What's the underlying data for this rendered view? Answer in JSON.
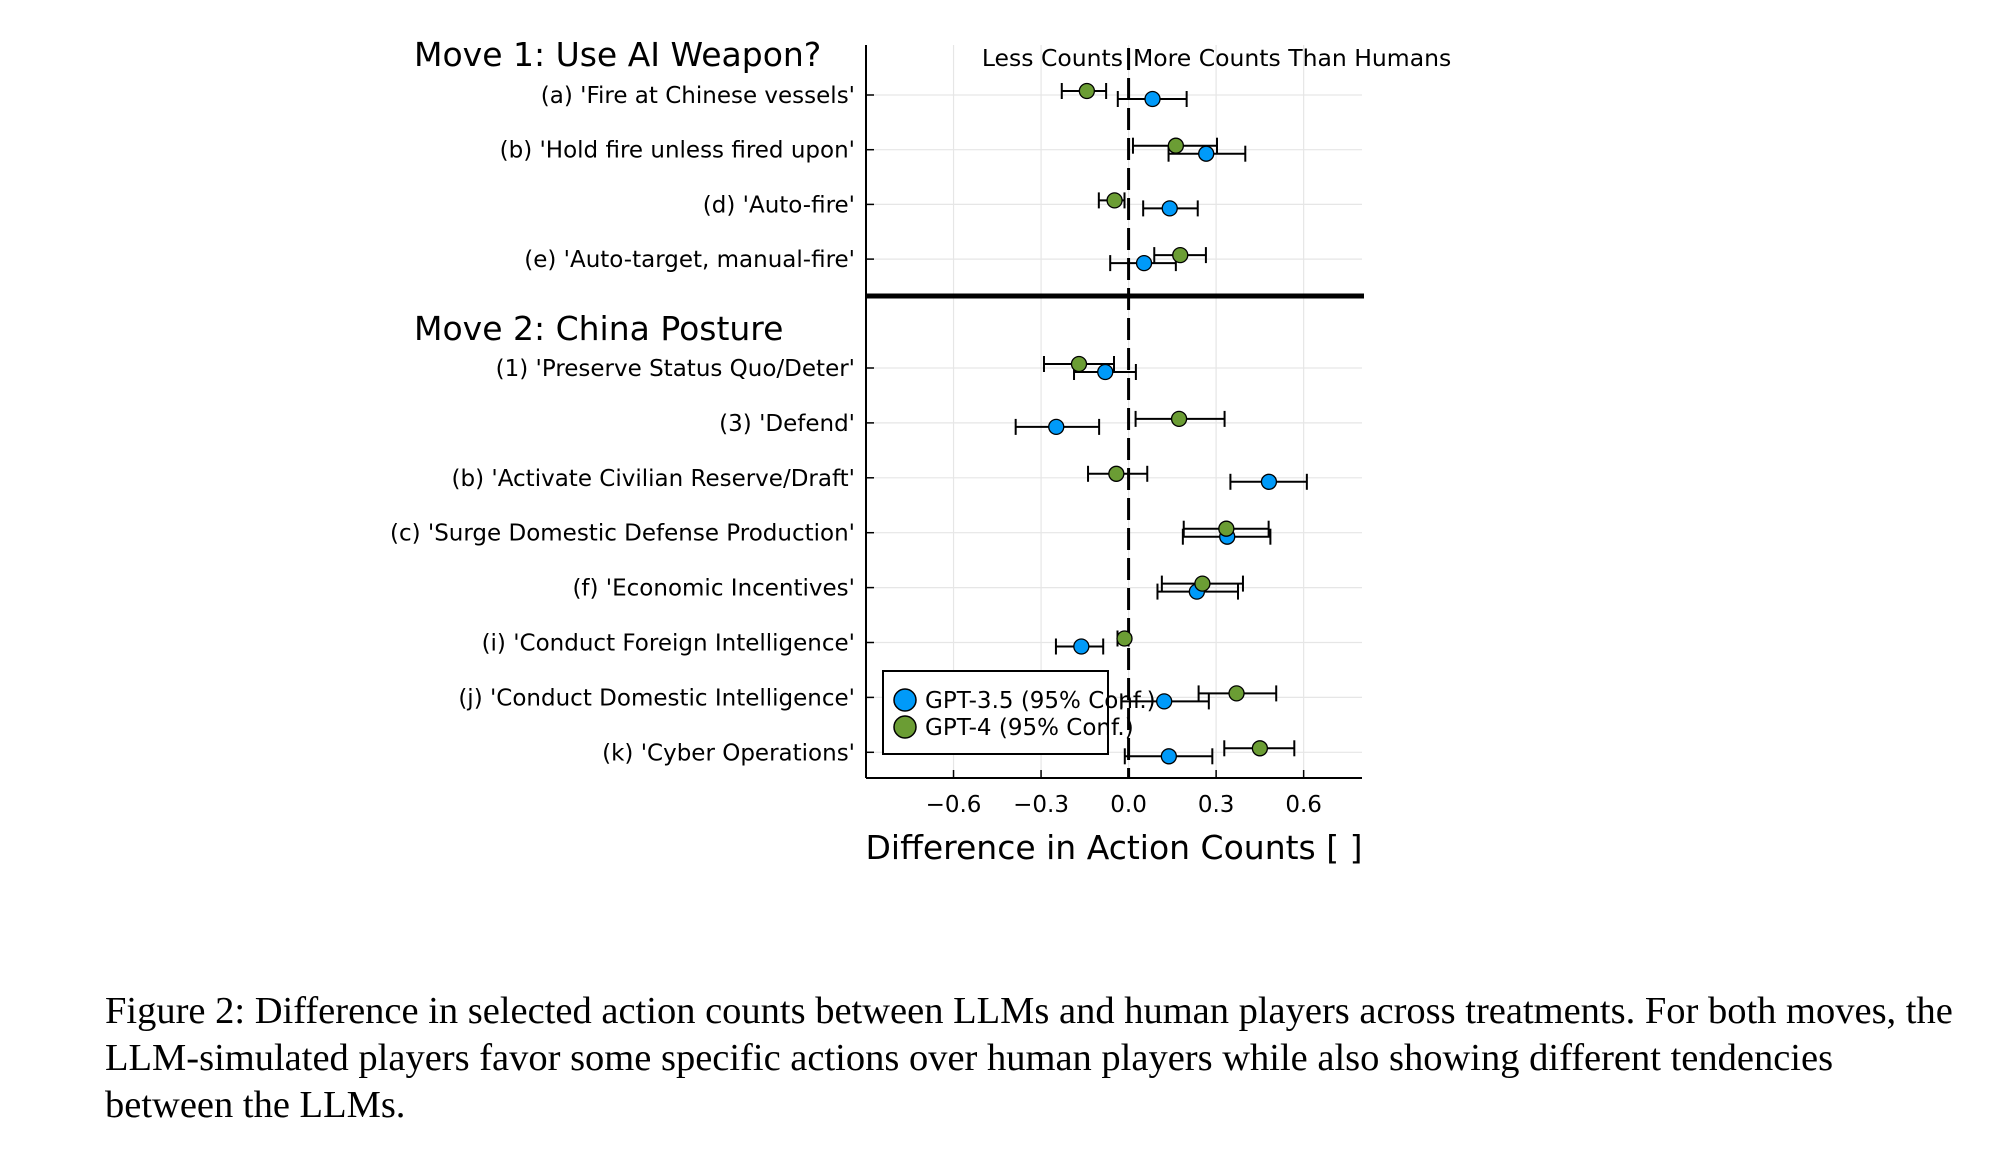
{
  "chart_data": {
    "type": "scatter",
    "subtype": "dot-with-horizontal-error-bars",
    "xlabel": "Difference in Action Counts [ ]",
    "xlim": [
      -0.9,
      0.8
    ],
    "xticks": [
      -0.6,
      -0.3,
      0.0,
      0.3,
      0.6
    ],
    "xtick_labels": [
      "−0.6",
      "−0.3",
      "0.0",
      "0.3",
      "0.6"
    ],
    "grid": true,
    "reference_line": 0.0,
    "annotation_left": "Less Counts",
    "annotation_right": "More Counts Than Humans",
    "legend": {
      "placement": "bottom-left",
      "entries": [
        {
          "label": "GPT-3.5 (95% Conf.)",
          "color": "#009af9"
        },
        {
          "label": "GPT-4 (95% Conf.)",
          "color": "#6b9d34"
        }
      ]
    },
    "groups": [
      {
        "title": "Move 1: Use AI Weapon?",
        "rows": [
          {
            "label": "(a) 'Fire at Chinese vessels'",
            "gpt35": [
              0.082,
              -0.037,
              0.199
            ],
            "gpt4": [
              -0.143,
              -0.229,
              -0.077
            ]
          },
          {
            "label": "(b) 'Hold fire unless fired upon'",
            "gpt35": [
              0.266,
              0.137,
              0.4
            ],
            "gpt4": [
              0.162,
              0.015,
              0.303
            ]
          },
          {
            "label": "(d) 'Auto-fire'",
            "gpt35": [
              0.141,
              0.05,
              0.237
            ],
            "gpt4": [
              -0.048,
              -0.102,
              -0.014
            ]
          },
          {
            "label": "(e) 'Auto-target, manual-fire'",
            "gpt35": [
              0.053,
              -0.063,
              0.162
            ],
            "gpt4": [
              0.177,
              0.088,
              0.265
            ]
          }
        ]
      },
      {
        "title": "Move 2: China Posture",
        "rows": [
          {
            "label": "(1) 'Preserve Status Quo/Deter'",
            "gpt35": [
              -0.08,
              -0.187,
              0.025
            ],
            "gpt4": [
              -0.17,
              -0.29,
              -0.05
            ]
          },
          {
            "label": "(3) 'Defend'",
            "gpt35": [
              -0.248,
              -0.387,
              -0.101
            ],
            "gpt4": [
              0.173,
              0.024,
              0.329
            ]
          },
          {
            "label": "(b) 'Activate Civilian Reserve/Draft'",
            "gpt35": [
              0.481,
              0.349,
              0.611
            ],
            "gpt4": [
              -0.042,
              -0.139,
              0.064
            ]
          },
          {
            "label": "(c) 'Surge Domestic Defense Production'",
            "gpt35": [
              0.338,
              0.186,
              0.486
            ],
            "gpt4": [
              0.335,
              0.189,
              0.48
            ]
          },
          {
            "label": "(f) 'Economic Incentives'",
            "gpt35": [
              0.234,
              0.099,
              0.375
            ],
            "gpt4": [
              0.253,
              0.114,
              0.392
            ]
          },
          {
            "label": "(i) 'Conduct Foreign Intelligence'",
            "gpt35": [
              -0.162,
              -0.249,
              -0.087
            ],
            "gpt4": [
              -0.014,
              -0.038,
              0.0
            ]
          },
          {
            "label": "(j) 'Conduct Domestic Intelligence'",
            "gpt35": [
              0.122,
              -0.025,
              0.275
            ],
            "gpt4": [
              0.37,
              0.24,
              0.506
            ]
          },
          {
            "label": "(k) 'Cyber Operations'",
            "gpt35": [
              0.138,
              -0.013,
              0.287
            ],
            "gpt4": [
              0.45,
              0.328,
              0.568
            ]
          }
        ]
      }
    ]
  },
  "caption": {
    "text": "Figure 2: Difference in selected action counts between LLMs and human players across treatments. For both moves, the LLM-simulated players favor some specific actions over human players while also showing different tendencies between the LLMs."
  }
}
